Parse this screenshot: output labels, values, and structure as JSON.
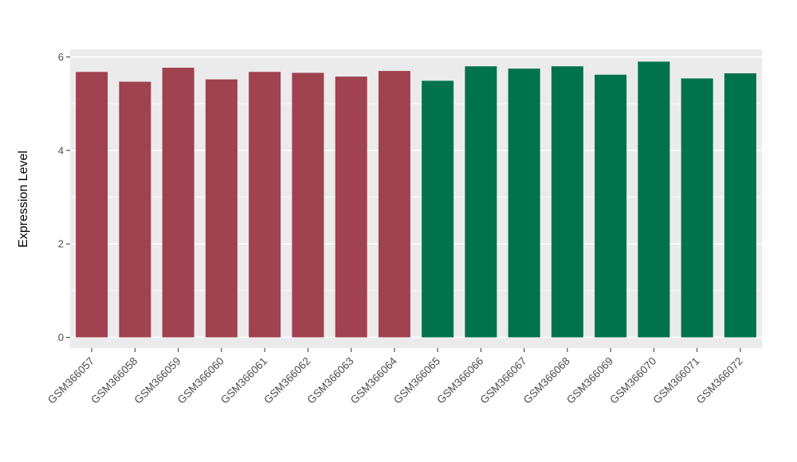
{
  "chart_data": {
    "type": "bar",
    "title": "",
    "ylabel": "Expression Level",
    "xlabel": "",
    "ylim": [
      0,
      6
    ],
    "yticks": [
      0,
      2,
      4,
      6
    ],
    "yticks_minor": [
      1,
      3,
      5
    ],
    "grid": true,
    "legend_position": "none",
    "panel_bg": "#EBEBEB",
    "grid_major_color": "#FFFFFF",
    "grid_minor_color": "#FFFFFF",
    "tick_color": "#333333",
    "axis_text_color": "#4D4D4D",
    "categories": [
      "GSM366057",
      "GSM366058",
      "GSM366059",
      "GSM366060",
      "GSM366061",
      "GSM366062",
      "GSM366063",
      "GSM366064",
      "GSM366065",
      "GSM366066",
      "GSM366067",
      "GSM366068",
      "GSM366069",
      "GSM366070",
      "GSM366071",
      "GSM366072"
    ],
    "values": [
      5.68,
      5.47,
      5.77,
      5.52,
      5.68,
      5.66,
      5.58,
      5.7,
      5.49,
      5.8,
      5.75,
      5.8,
      5.62,
      5.9,
      5.54,
      5.65
    ],
    "groups": [
      "red",
      "red",
      "red",
      "red",
      "red",
      "red",
      "red",
      "red",
      "green",
      "green",
      "green",
      "green",
      "green",
      "green",
      "green",
      "green"
    ],
    "group_colors": {
      "red": "#A0424F",
      "green": "#00724C"
    }
  }
}
